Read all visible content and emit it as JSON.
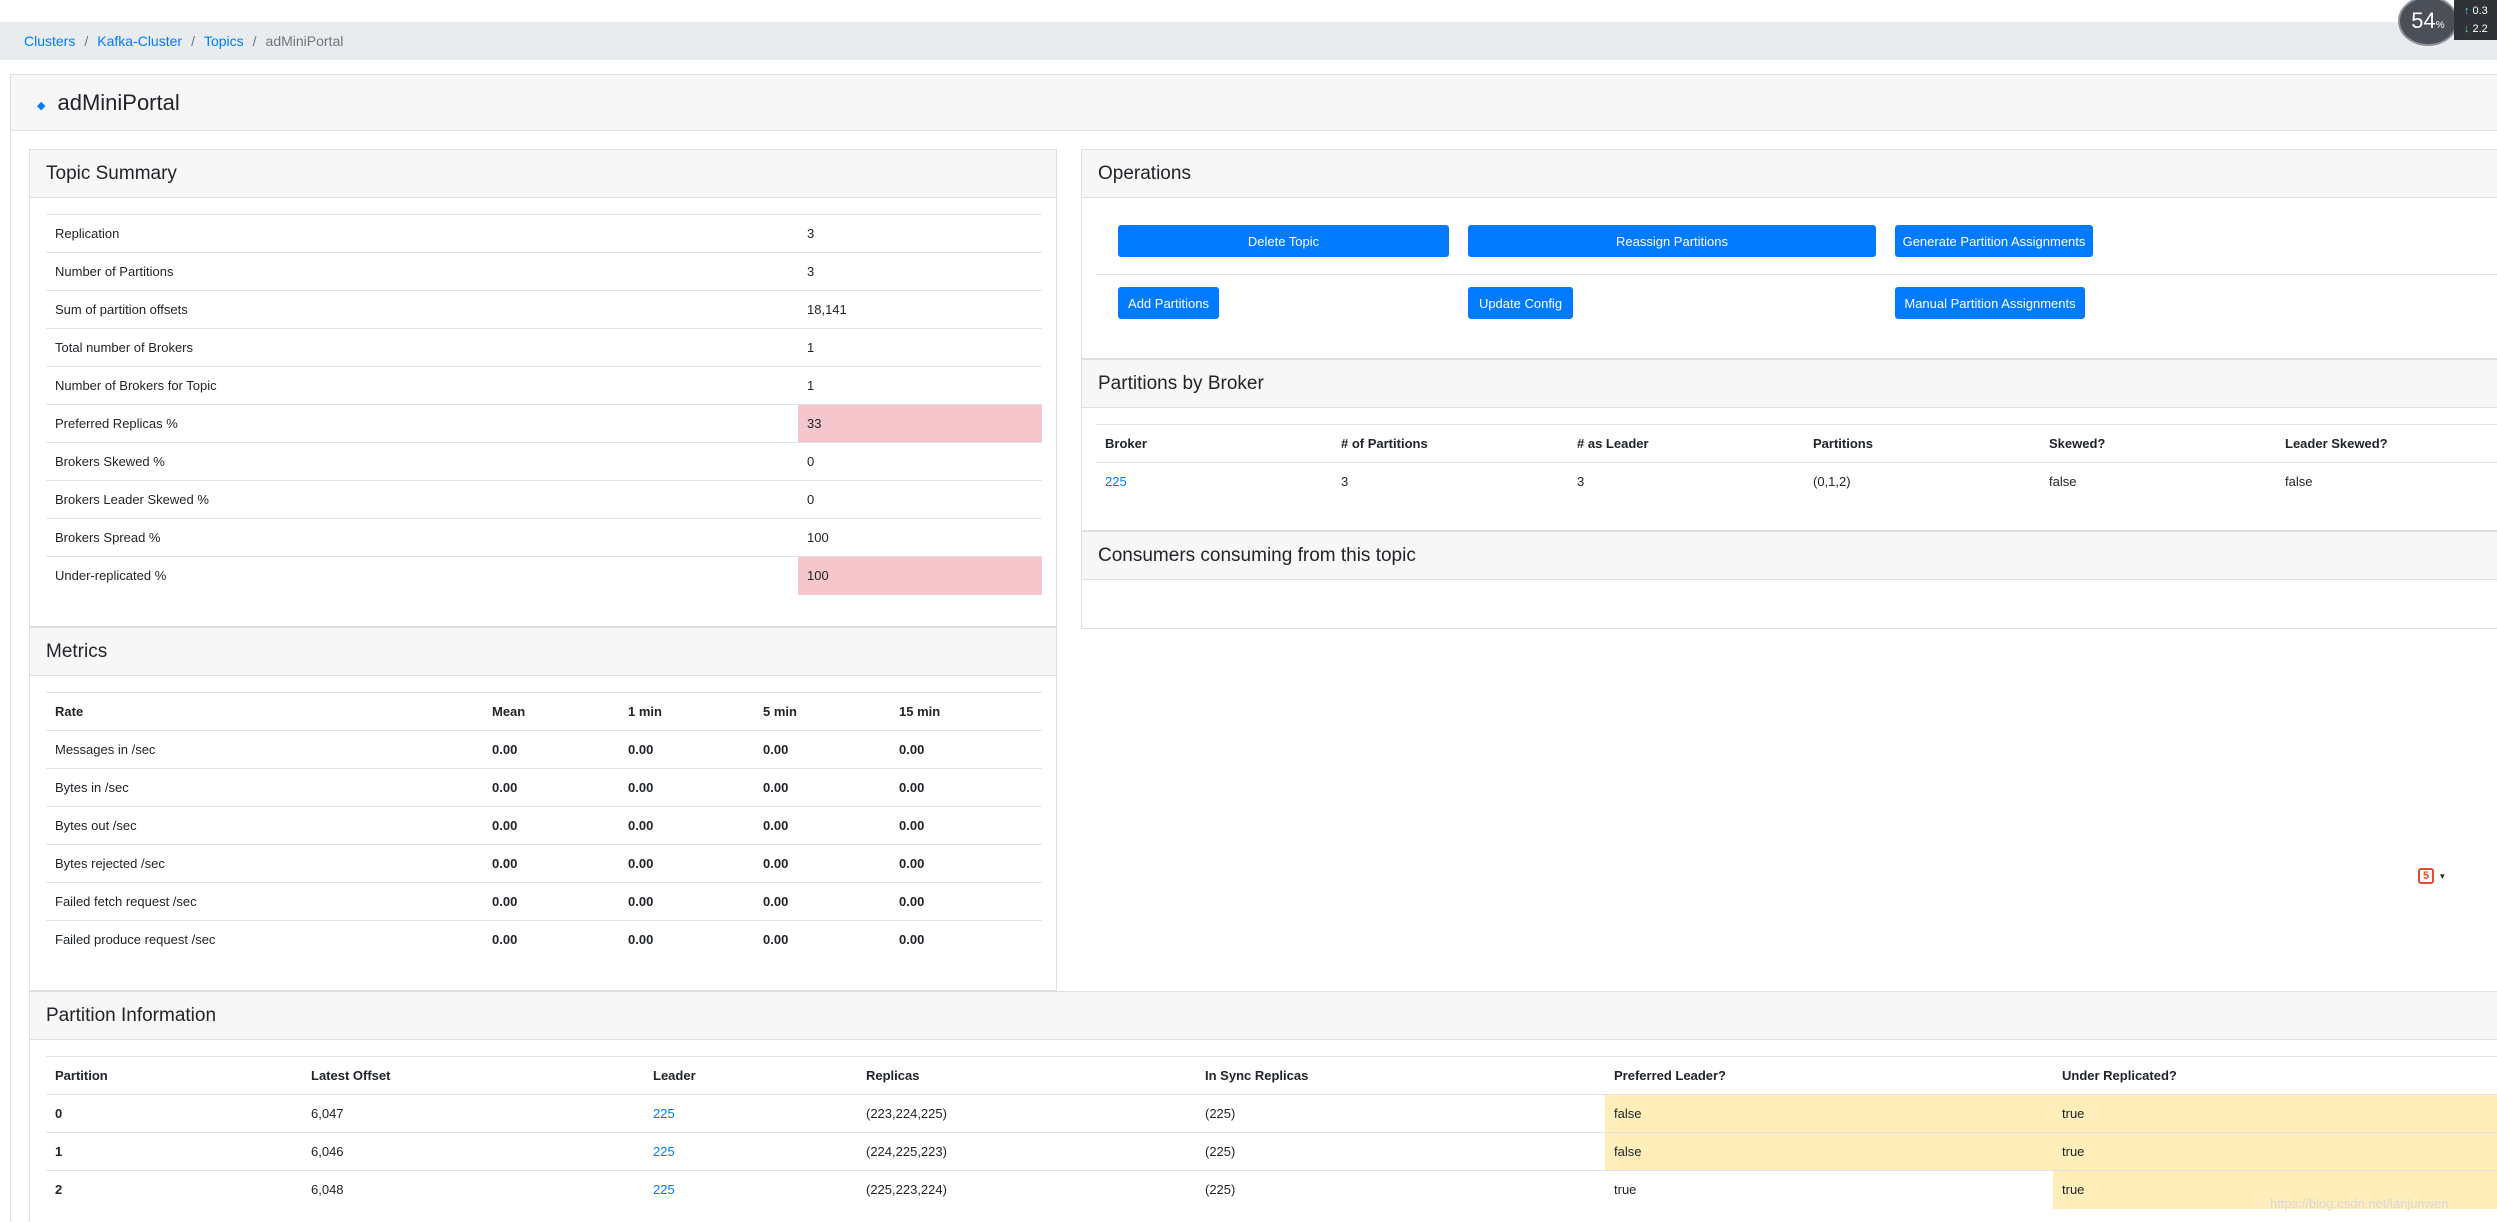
{
  "breadcrumb": {
    "items": [
      "Clusters",
      "Kafka-Cluster",
      "Topics"
    ],
    "current": "adMiniPortal"
  },
  "topic": {
    "name": "adMiniPortal"
  },
  "summary": {
    "title": "Topic Summary",
    "rows": [
      {
        "label": "Replication",
        "value": "3",
        "highlight": false
      },
      {
        "label": "Number of Partitions",
        "value": "3",
        "highlight": false
      },
      {
        "label": "Sum of partition offsets",
        "value": "18,141",
        "highlight": false
      },
      {
        "label": "Total number of Brokers",
        "value": "1",
        "highlight": false
      },
      {
        "label": "Number of Brokers for Topic",
        "value": "1",
        "highlight": false
      },
      {
        "label": "Preferred Replicas %",
        "value": "33",
        "highlight": true
      },
      {
        "label": "Brokers Skewed %",
        "value": "0",
        "highlight": false
      },
      {
        "label": "Brokers Leader Skewed %",
        "value": "0",
        "highlight": false
      },
      {
        "label": "Brokers Spread %",
        "value": "100",
        "highlight": false
      },
      {
        "label": "Under-replicated %",
        "value": "100",
        "highlight": true
      }
    ]
  },
  "metrics": {
    "title": "Metrics",
    "headers": [
      "Rate",
      "Mean",
      "1 min",
      "5 min",
      "15 min"
    ],
    "rows": [
      {
        "label": "Messages in /sec",
        "values": [
          "0.00",
          "0.00",
          "0.00",
          "0.00"
        ]
      },
      {
        "label": "Bytes in /sec",
        "values": [
          "0.00",
          "0.00",
          "0.00",
          "0.00"
        ]
      },
      {
        "label": "Bytes out /sec",
        "values": [
          "0.00",
          "0.00",
          "0.00",
          "0.00"
        ]
      },
      {
        "label": "Bytes rejected /sec",
        "values": [
          "0.00",
          "0.00",
          "0.00",
          "0.00"
        ]
      },
      {
        "label": "Failed fetch request /sec",
        "values": [
          "0.00",
          "0.00",
          "0.00",
          "0.00"
        ]
      },
      {
        "label": "Failed produce request /sec",
        "values": [
          "0.00",
          "0.00",
          "0.00",
          "0.00"
        ]
      }
    ]
  },
  "operations": {
    "title": "Operations",
    "buttons": {
      "delete": "Delete Topic",
      "reassign": "Reassign Partitions",
      "generate": "Generate Partition Assignments",
      "add": "Add Partitions",
      "update": "Update Config",
      "manual": "Manual Partition Assignments"
    }
  },
  "partitions_by_broker": {
    "title": "Partitions by Broker",
    "headers": [
      "Broker",
      "# of Partitions",
      "# as Leader",
      "Partitions",
      "Skewed?",
      "Leader Skewed?"
    ],
    "rows": [
      {
        "broker": "225",
        "num_partitions": "3",
        "as_leader": "3",
        "partitions": "(0,1,2)",
        "skewed": "false",
        "leader_skewed": "false"
      }
    ]
  },
  "consumers": {
    "title": "Consumers consuming from this topic"
  },
  "partition_info": {
    "title": "Partition Information",
    "headers": [
      "Partition",
      "Latest Offset",
      "Leader",
      "Replicas",
      "In Sync Replicas",
      "Preferred Leader?",
      "Under Replicated?"
    ],
    "rows": [
      {
        "partition": "0",
        "offset": "6,047",
        "leader": "225",
        "replicas": "(223,224,225)",
        "isr": "(225)",
        "preferred": "false",
        "under": "true",
        "preferred_warn": true,
        "under_warn": true
      },
      {
        "partition": "1",
        "offset": "6,046",
        "leader": "225",
        "replicas": "(224,225,223)",
        "isr": "(225)",
        "preferred": "false",
        "under": "true",
        "preferred_warn": true,
        "under_warn": true
      },
      {
        "partition": "2",
        "offset": "6,048",
        "leader": "225",
        "replicas": "(225,223,224)",
        "isr": "(225)",
        "preferred": "true",
        "under": "true",
        "preferred_warn": false,
        "under_warn": true
      }
    ]
  },
  "widget": {
    "percent": "54",
    "percent_unit": "%",
    "up": "0.3",
    "down": "2.2"
  },
  "side_widget": {
    "icon": "html5-icon",
    "glyph": "5",
    "caret": "▾"
  },
  "watermark": "https://blog.csdn.net/lanjunwen"
}
